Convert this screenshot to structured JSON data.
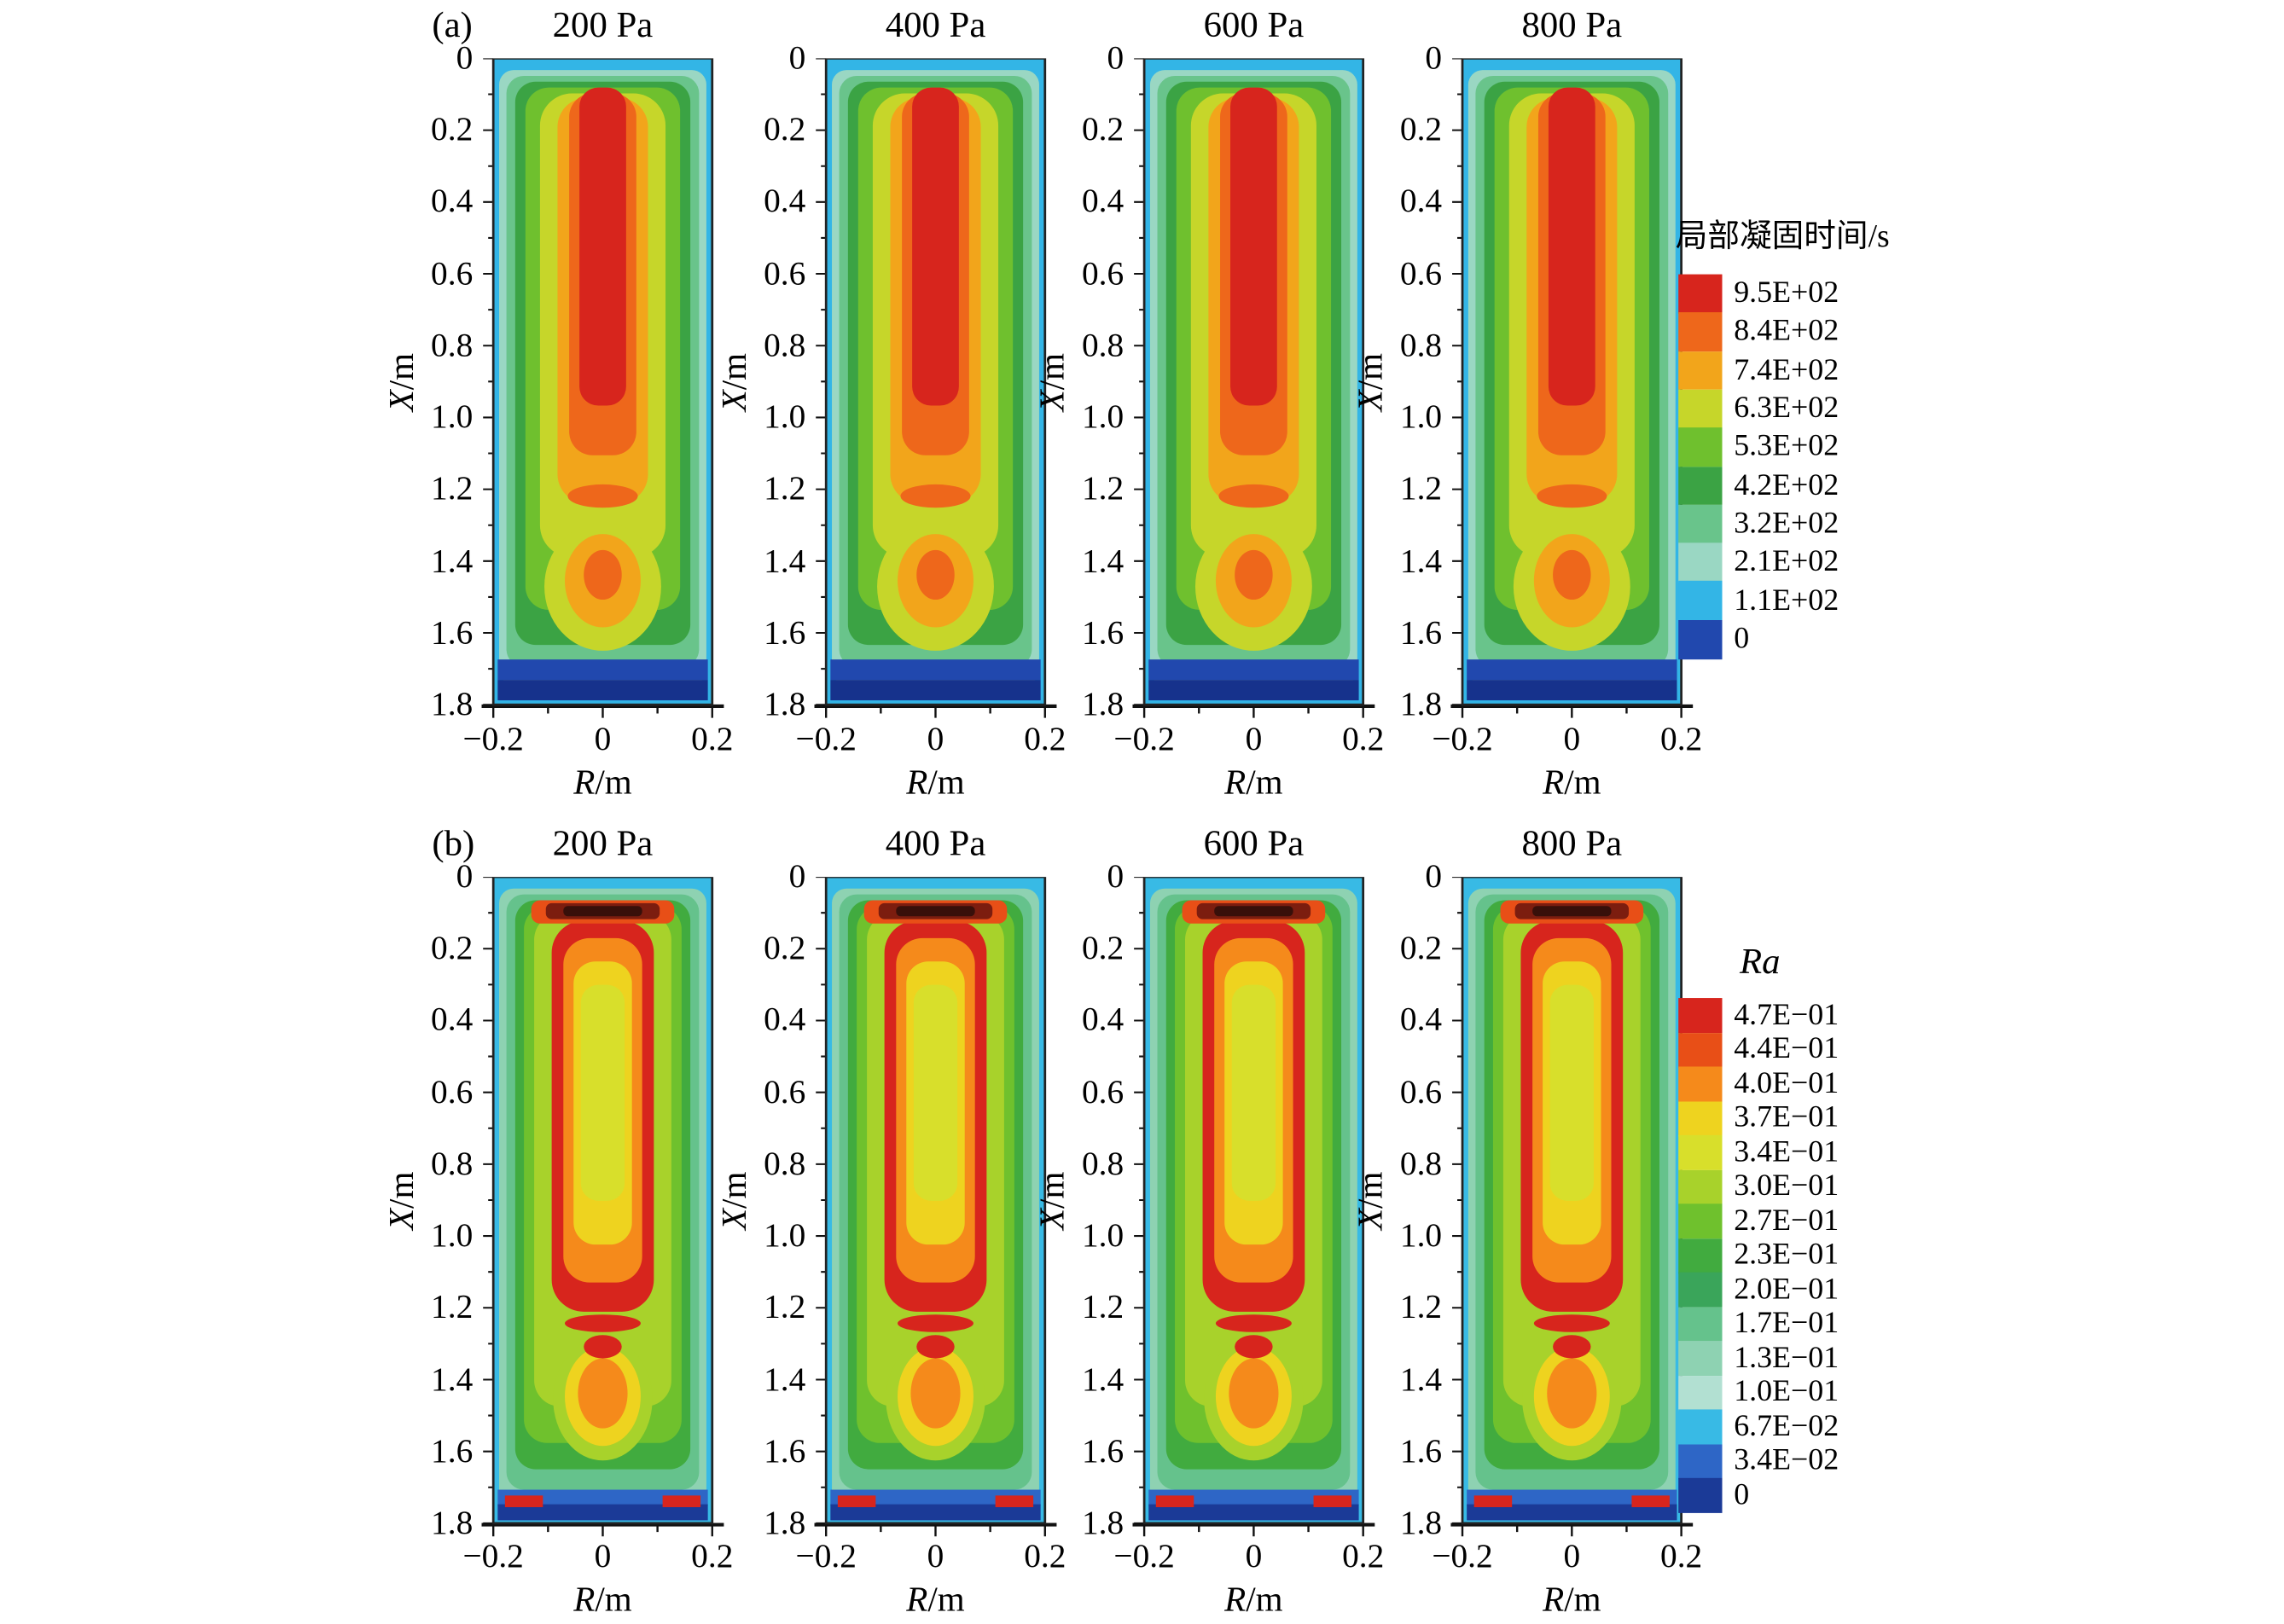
{
  "figure": {
    "rows": [
      {
        "id": "a",
        "row_label": "(a)",
        "panel_titles": [
          "200 Pa",
          "400 Pa",
          "600 Pa",
          "800 Pa"
        ],
        "y_axis_label": "X/m",
        "x_axis_label": "R/m",
        "y_tick_labels": [
          "0",
          "0.2",
          "0.4",
          "0.6",
          "0.8",
          "1.0",
          "1.2",
          "1.4",
          "1.6",
          "1.8"
        ],
        "x_tick_labels": [
          "−0.2",
          "0",
          "0.2"
        ],
        "legend": {
          "title": "局部凝固时间/s",
          "entries": [
            {
              "label": "9.5E+02",
              "color": "#d7251d"
            },
            {
              "label": "8.4E+02",
              "color": "#ee671b"
            },
            {
              "label": "7.4E+02",
              "color": "#f2a51b"
            },
            {
              "label": "6.3E+02",
              "color": "#c6d62a"
            },
            {
              "label": "5.3E+02",
              "color": "#6fc02e"
            },
            {
              "label": "4.2E+02",
              "color": "#3ba344"
            },
            {
              "label": "3.2E+02",
              "color": "#69c48b"
            },
            {
              "label": "2.1E+02",
              "color": "#9ad7c3"
            },
            {
              "label": "1.1E+02",
              "color": "#33b5e6"
            },
            {
              "label": "0",
              "color": "#2148ae"
            }
          ]
        }
      },
      {
        "id": "b",
        "row_label": "(b)",
        "panel_titles": [
          "200 Pa",
          "400 Pa",
          "600 Pa",
          "800 Pa"
        ],
        "y_axis_label": "X/m",
        "x_axis_label": "R/m",
        "y_tick_labels": [
          "0",
          "0.2",
          "0.4",
          "0.6",
          "0.8",
          "1.0",
          "1.2",
          "1.4",
          "1.6",
          "1.8"
        ],
        "x_tick_labels": [
          "−0.2",
          "0",
          "0.2"
        ],
        "legend": {
          "title": "Ra",
          "entries": [
            {
              "label": "4.7E−01",
              "color": "#d7251d"
            },
            {
              "label": "4.4E−01",
              "color": "#e84f17"
            },
            {
              "label": "4.0E−01",
              "color": "#f58a1b"
            },
            {
              "label": "3.7E−01",
              "color": "#eed31f"
            },
            {
              "label": "3.4E−01",
              "color": "#d8df2b"
            },
            {
              "label": "3.0E−01",
              "color": "#a8d22b"
            },
            {
              "label": "2.7E−01",
              "color": "#6fc12d"
            },
            {
              "label": "2.3E−01",
              "color": "#41ab3f"
            },
            {
              "label": "2.0E−01",
              "color": "#3aa55a"
            },
            {
              "label": "1.7E−01",
              "color": "#65c28c"
            },
            {
              "label": "1.3E−01",
              "color": "#8ed2b2"
            },
            {
              "label": "1.0E−01",
              "color": "#b2e0d2"
            },
            {
              "label": "6.7E−02",
              "color": "#38bae5"
            },
            {
              "label": "3.4E−02",
              "color": "#2e66c6"
            },
            {
              "label": "0",
              "color": "#1b3a97"
            }
          ]
        }
      }
    ]
  },
  "chart_data": [
    {
      "type": "heatmap",
      "plot_style": "filled-contour",
      "subfigure": "(a)",
      "colorbar_title": "局部凝固时间/s",
      "panels": [
        "200 Pa",
        "400 Pa",
        "600 Pa",
        "800 Pa"
      ],
      "panel_pressures_Pa": [
        200,
        400,
        600,
        800
      ],
      "xlabel": "R/m",
      "ylabel": "X/m",
      "xticks": [
        -0.2,
        0,
        0.2
      ],
      "yticks": [
        0,
        0.2,
        0.4,
        0.6,
        0.8,
        1.0,
        1.2,
        1.4,
        1.6,
        1.8
      ],
      "xlim": [
        -0.25,
        0.25
      ],
      "ylim": [
        0,
        1.8
      ],
      "levels": [
        950,
        840,
        740,
        630,
        530,
        420,
        320,
        210,
        110,
        0
      ],
      "level_labels": [
        "9.5E+02",
        "8.4E+02",
        "7.4E+02",
        "6.3E+02",
        "5.3E+02",
        "4.2E+02",
        "3.2E+02",
        "2.1E+02",
        "1.1E+02",
        "0"
      ],
      "level_colors": [
        "#d7251d",
        "#ee671b",
        "#f2a51b",
        "#c6d62a",
        "#6fc02e",
        "#3ba344",
        "#69c48b",
        "#9ad7c3",
        "#33b5e6",
        "#2148ae"
      ]
    },
    {
      "type": "heatmap",
      "plot_style": "filled-contour",
      "subfigure": "(b)",
      "colorbar_title": "Ra",
      "panels": [
        "200 Pa",
        "400 Pa",
        "600 Pa",
        "800 Pa"
      ],
      "panel_pressures_Pa": [
        200,
        400,
        600,
        800
      ],
      "xlabel": "R/m",
      "ylabel": "X/m",
      "xticks": [
        -0.2,
        0,
        0.2
      ],
      "yticks": [
        0,
        0.2,
        0.4,
        0.6,
        0.8,
        1.0,
        1.2,
        1.4,
        1.6,
        1.8
      ],
      "xlim": [
        -0.25,
        0.25
      ],
      "ylim": [
        0,
        1.8
      ],
      "levels": [
        0.47,
        0.44,
        0.4,
        0.37,
        0.34,
        0.3,
        0.27,
        0.23,
        0.2,
        0.17,
        0.13,
        0.1,
        0.067,
        0.034,
        0
      ],
      "level_labels": [
        "4.7E−01",
        "4.4E−01",
        "4.0E−01",
        "3.7E−01",
        "3.4E−01",
        "3.0E−01",
        "2.7E−01",
        "2.3E−01",
        "2.0E−01",
        "1.7E−01",
        "1.3E−01",
        "1.0E−01",
        "6.7E−02",
        "3.4E−02",
        "0"
      ],
      "level_colors": [
        "#d7251d",
        "#e84f17",
        "#f58a1b",
        "#eed31f",
        "#d8df2b",
        "#a8d22b",
        "#6fc12d",
        "#41ab3f",
        "#3aa55a",
        "#65c28c",
        "#8ed2b2",
        "#b2e0d2",
        "#38bae5",
        "#2e66c6",
        "#1b3a97"
      ]
    }
  ]
}
